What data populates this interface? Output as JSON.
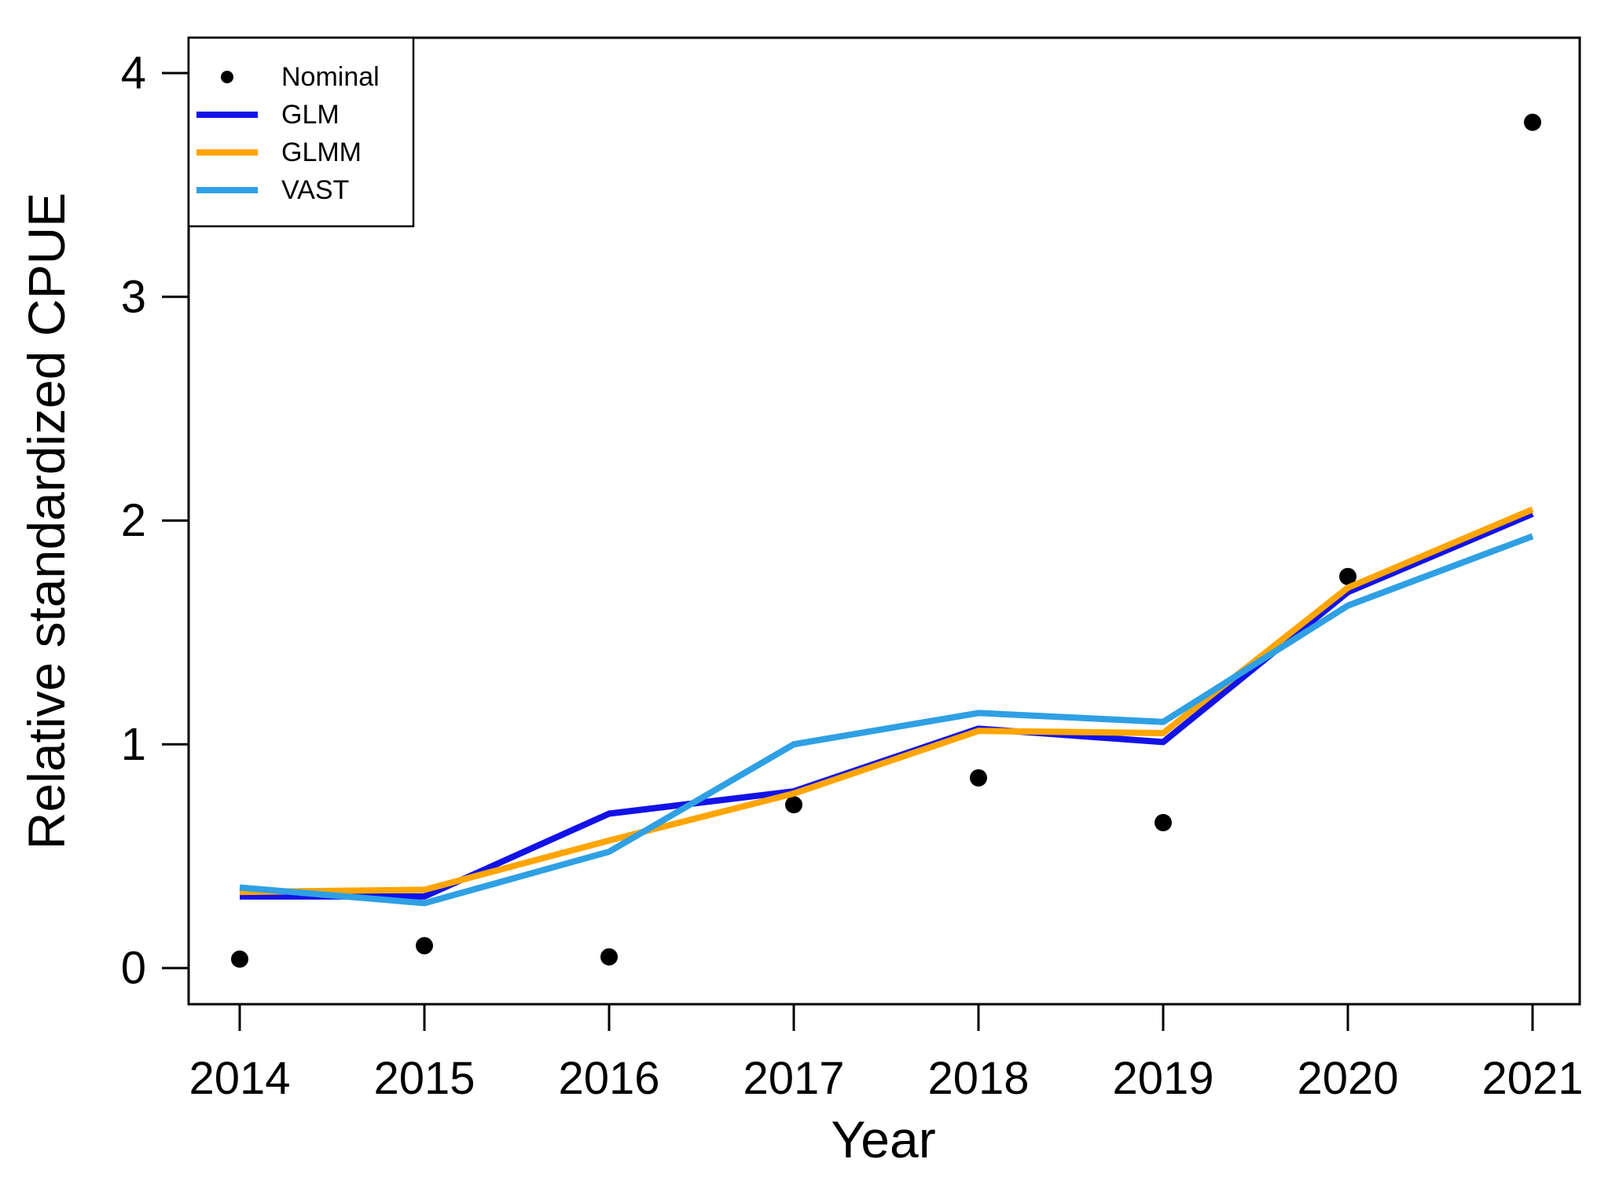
{
  "figure": {
    "background": "#ffffff",
    "axis_color": "#000000"
  },
  "chart_data": {
    "type": "line",
    "title": "",
    "xlabel": "Year",
    "ylabel": "Relative standardized CPUE",
    "x": [
      2014,
      2015,
      2016,
      2017,
      2018,
      2019,
      2020,
      2021
    ],
    "yticks": [
      0,
      1,
      2,
      3,
      4
    ],
    "ylim": [
      0,
      4.2
    ],
    "grid": false,
    "legend_position": "top-left",
    "scatter": {
      "name": "Nominal",
      "marker": "filled-circle",
      "color": "#000000",
      "values": [
        0.04,
        0.1,
        0.05,
        0.73,
        0.85,
        0.65,
        1.75,
        3.78
      ]
    },
    "series": [
      {
        "name": "GLM",
        "color": "#1212E8",
        "values": [
          0.32,
          0.32,
          0.69,
          0.79,
          1.07,
          1.01,
          1.68,
          2.03
        ]
      },
      {
        "name": "GLMM",
        "color": "#FFA500",
        "values": [
          0.34,
          0.35,
          0.57,
          0.78,
          1.06,
          1.05,
          1.7,
          2.05
        ]
      },
      {
        "name": "VAST",
        "color": "#2FA0E4",
        "values": [
          0.36,
          0.29,
          0.52,
          1.0,
          1.14,
          1.1,
          1.62,
          1.93
        ]
      }
    ]
  }
}
